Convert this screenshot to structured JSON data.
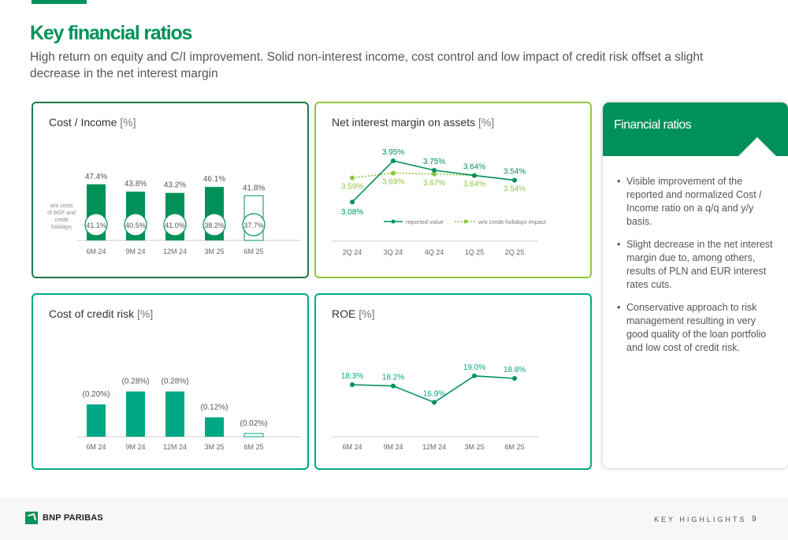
{
  "header": {
    "title": "Key financial ratios",
    "subtitle": "High return on equity and C/I improvement. Solid non-interest income, cost control and low impact of credit risk offset a slight decrease in the net interest margin"
  },
  "colors": {
    "brand_green": "#00915a",
    "light_green": "#8dc63f",
    "teal": "#00a886",
    "dark_green_border": "#1a7a4a"
  },
  "charts": {
    "cost_income": {
      "title_main": "Cost / Income",
      "title_unit": "[%]",
      "side_note_lines": [
        "w/o costs",
        "of BGF and",
        "credit",
        "holidays"
      ]
    },
    "nim": {
      "title_main": "Net interest margin on assets",
      "title_unit": "[%]",
      "legend_reported": "reported value",
      "legend_wo": "w/o credit holidays impact"
    },
    "credit_risk": {
      "title_main": "Cost of credit risk",
      "title_unit": "[%]"
    },
    "roe": {
      "title_main": "ROE",
      "title_unit": "[%]"
    }
  },
  "chart_data": [
    {
      "type": "bar",
      "title": "Cost / Income [%]",
      "categories": [
        "6M 24",
        "9M 24",
        "12M 24",
        "3M 25",
        "6M 25"
      ],
      "series": [
        {
          "values": [
            47.4,
            43.8,
            43.2,
            46.1,
            41.8
          ],
          "labels": [
            "47.4%",
            "43.8%",
            "43.2%",
            "46.1%",
            "41.8%"
          ]
        },
        {
          "values": [
            41.1,
            40.5,
            41.0,
            38.2,
            37.7
          ],
          "labels": [
            "41.1%",
            "40.5%",
            "41.0%",
            "38.2%",
            "37.7%"
          ]
        }
      ]
    },
    {
      "type": "line",
      "title": "Net interest margin on assets [%]",
      "categories": [
        "2Q 24",
        "3Q 24",
        "4Q 24",
        "1Q 25",
        "2Q 25"
      ],
      "series": [
        {
          "name": "reported value",
          "values": [
            3.08,
            3.95,
            3.75,
            3.64,
            3.54
          ],
          "labels": [
            "3.08%",
            "3.95%",
            "3.75%",
            "3.64%",
            "3.54%"
          ]
        },
        {
          "name": "w/o credit holidays impact",
          "values": [
            3.59,
            3.69,
            3.67,
            3.64,
            3.54
          ],
          "labels": [
            "3.59%",
            "3.69%",
            "3.67%",
            "3.64%",
            "3.54%"
          ]
        }
      ],
      "legend": "bottom-right"
    },
    {
      "type": "bar",
      "title": "Cost of credit risk [%]",
      "categories": [
        "6M 24",
        "9M 24",
        "12M 24",
        "3M 25",
        "6M 25"
      ],
      "values": [
        0.2,
        0.28,
        0.28,
        0.12,
        0.02
      ],
      "labels": [
        "(0.20%)",
        "(0.28%)",
        "(0.28%)",
        "(0.12%)",
        "(0.02%)"
      ]
    },
    {
      "type": "line",
      "title": "ROE [%]",
      "categories": [
        "6M 24",
        "9M 24",
        "12M 24",
        "3M 25",
        "6M 25"
      ],
      "values": [
        18.3,
        18.2,
        16.9,
        19.0,
        18.8
      ],
      "labels": [
        "18.3%",
        "18.2%",
        "16.9%",
        "19.0%",
        "18.8%"
      ]
    }
  ],
  "panel": {
    "title": "Financial ratios",
    "bullets": [
      "Visible improvement of the reported and normalized Cost / Income ratio on a q/q and y/y basis.",
      "Slight decrease in the net interest margin due to, among others, results of PLN and EUR interest rates cuts.",
      "Conservative approach to risk management resulting in very good quality of the loan portfolio and low cost of credit risk."
    ]
  },
  "footer": {
    "brand": "BNP PARIBAS",
    "section": "KEY HIGHLIGHTS",
    "page": "9"
  }
}
